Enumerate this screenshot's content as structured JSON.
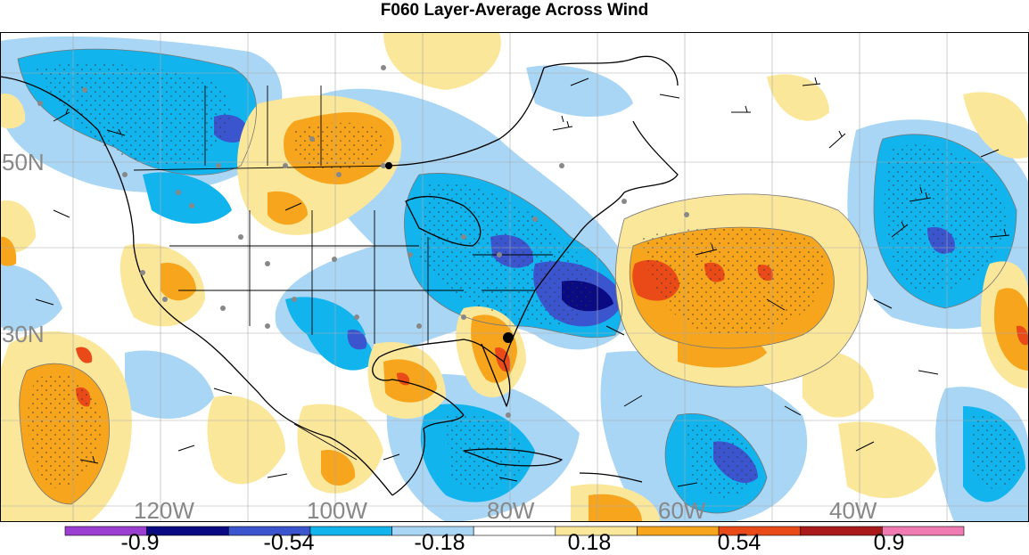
{
  "title": "F060 Layer-Average Across Wind",
  "map": {
    "lat_labels": [
      "50N",
      "30N"
    ],
    "lon_labels": [
      "120W",
      "100W",
      "80W",
      "60W",
      "40W"
    ],
    "label_color": "#888888",
    "grid_color": "#aaaaaa",
    "coast_color": "#000000"
  },
  "legend": {
    "colors": [
      "#9a3fd1",
      "#0a0a82",
      "#3b55cf",
      "#12b4ee",
      "#a9d6f5",
      "#ffffff",
      "#fbe79a",
      "#f6a51c",
      "#e94a17",
      "#aa1a1a",
      "#f07bb2"
    ],
    "tick_labels": [
      "-0.9",
      "-0.54",
      "-0.18",
      "0.18",
      "0.54",
      "0.9"
    ]
  }
}
